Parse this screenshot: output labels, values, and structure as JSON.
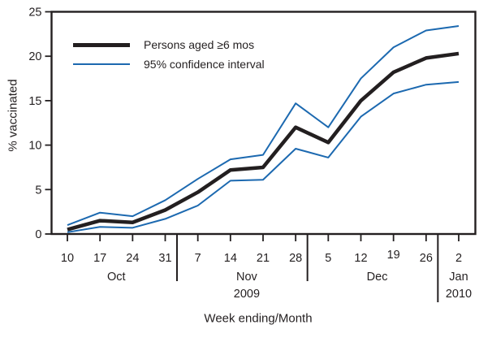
{
  "colors": {
    "ink": "#231f20",
    "ci_blue": "#1c69b0",
    "background": "#ffffff"
  },
  "chart_data": {
    "type": "line",
    "title": "",
    "xlabel": "Week ending/Month",
    "ylabel": "% vaccinated",
    "ylim": [
      0,
      25
    ],
    "yticks": [
      0,
      5,
      10,
      15,
      20,
      25
    ],
    "grid": false,
    "legend_position": "top-left-inside",
    "x_weeks": [
      "10",
      "17",
      "24",
      "31",
      "7",
      "14",
      "21",
      "28",
      "5",
      "12",
      "19",
      "26",
      "2"
    ],
    "month_groups": [
      {
        "label": "Oct",
        "year": "",
        "start": 0,
        "end": 3
      },
      {
        "label": "Nov",
        "year": "2009",
        "start": 4,
        "end": 7
      },
      {
        "label": "Dec",
        "year": "",
        "start": 8,
        "end": 11
      },
      {
        "label": "Jan",
        "year": "2010",
        "start": 12,
        "end": 12
      }
    ],
    "series": [
      {
        "name": "Persons aged ≥6 mos",
        "role": "estimate",
        "color": "#231f20",
        "stroke_width": 4.5,
        "values": [
          0.5,
          1.5,
          1.3,
          2.7,
          4.7,
          7.2,
          7.5,
          12.0,
          10.3,
          15.0,
          18.2,
          19.8,
          20.3
        ]
      },
      {
        "name": "95% CI upper bound",
        "role": "ci-upper",
        "color": "#1c69b0",
        "stroke_width": 2,
        "values": [
          1.0,
          2.4,
          2.0,
          3.8,
          6.2,
          8.4,
          8.9,
          14.7,
          12.0,
          17.5,
          21.0,
          22.9,
          23.4
        ]
      },
      {
        "name": "95% CI lower bound",
        "role": "ci-lower",
        "color": "#1c69b0",
        "stroke_width": 2,
        "values": [
          0.2,
          0.8,
          0.7,
          1.7,
          3.2,
          6.0,
          6.1,
          9.6,
          8.6,
          13.2,
          15.8,
          16.8,
          17.1
        ]
      }
    ],
    "legend": [
      {
        "label": "Persons aged ≥6 mos",
        "color": "#231f20",
        "thickness": 5
      },
      {
        "label": "95% confidence interval",
        "color": "#1c69b0",
        "thickness": 2
      }
    ]
  }
}
